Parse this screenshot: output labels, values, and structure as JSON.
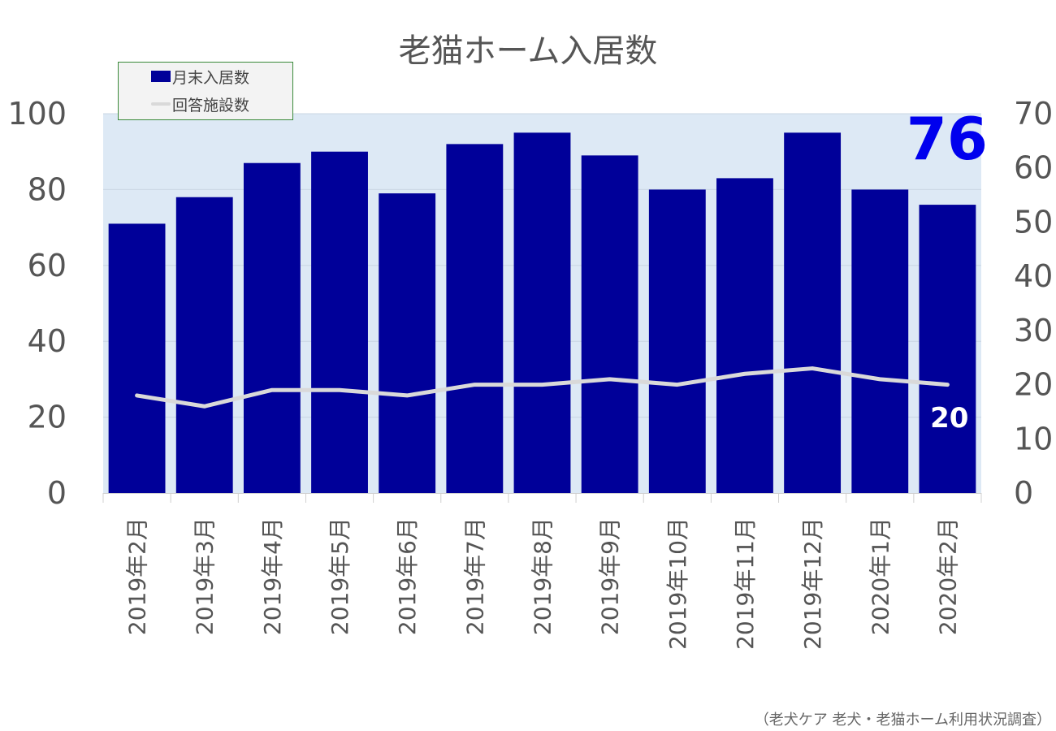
{
  "chart_data": {
    "type": "bar",
    "title": "老猫ホーム入居数",
    "categories": [
      "2019年2月",
      "2019年3月",
      "2019年4月",
      "2019年5月",
      "2019年6月",
      "2019年7月",
      "2019年8月",
      "2019年9月",
      "2019年10月",
      "2019年11月",
      "2019年12月",
      "2020年1月",
      "2020年2月"
    ],
    "series": [
      {
        "name": "月末入居数",
        "type": "bar",
        "axis": "left",
        "values": [
          71,
          78,
          87,
          90,
          79,
          92,
          95,
          89,
          80,
          83,
          95,
          80,
          76
        ],
        "color": "#000099"
      },
      {
        "name": "回答施設数",
        "type": "line",
        "axis": "right",
        "values": [
          18,
          16,
          19,
          19,
          18,
          20,
          20,
          21,
          20,
          22,
          23,
          21,
          20
        ],
        "color": "#d9d9d9"
      }
    ],
    "y_left": {
      "min": 0,
      "max": 100,
      "ticks": [
        0,
        20,
        40,
        60,
        80,
        100
      ]
    },
    "y_right": {
      "min": 0,
      "max": 70,
      "ticks": [
        0,
        10,
        20,
        30,
        40,
        50,
        60,
        70
      ]
    },
    "annotations": {
      "last_bar_value": "76",
      "last_line_value": "20"
    },
    "grid": true,
    "legend_position": "top-left",
    "plot_background": "#dde9f5",
    "annotation_color": "#0000ee"
  },
  "source_note": "（老犬ケア 老犬・老猫ホーム利用状況調査）"
}
